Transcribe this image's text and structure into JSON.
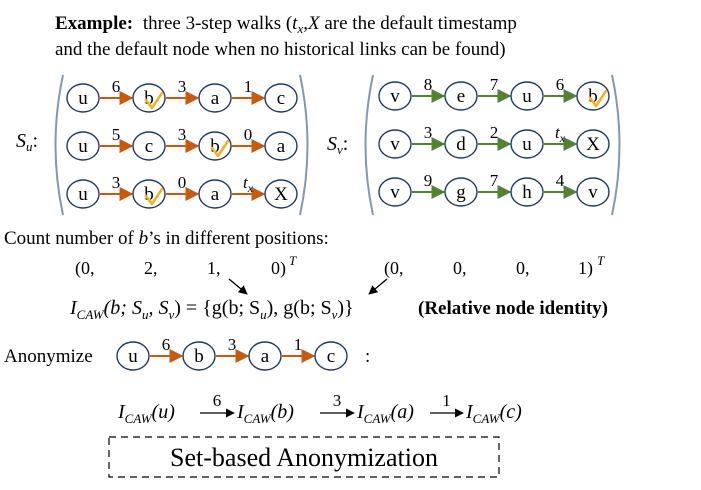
{
  "example": {
    "bold": "Example:",
    "line1_rest": "three 3-step walks (",
    "tx_t": "t",
    "tx_x": "x",
    "comma_X": ",",
    "X": "X",
    "line1_end": " are the default timestamp",
    "line2": "and the default node when no historical links can be found)"
  },
  "set_labels": {
    "su_S": "S",
    "su_sub": "u",
    "su_colon": ":",
    "sv_S": "S",
    "sv_sub": "v",
    "sv_colon": ":"
  },
  "su_walks": [
    {
      "nodes": [
        "u",
        "b",
        "a",
        "c"
      ],
      "edges": [
        "6",
        "3",
        "1"
      ],
      "checked": [
        1
      ]
    },
    {
      "nodes": [
        "u",
        "c",
        "b",
        "a"
      ],
      "edges": [
        "5",
        "3",
        "0"
      ],
      "checked": [
        2
      ]
    },
    {
      "nodes": [
        "u",
        "b",
        "a",
        "X"
      ],
      "edges": [
        "3",
        "0",
        "tx"
      ],
      "checked": [
        1
      ]
    }
  ],
  "sv_walks": [
    {
      "nodes": [
        "v",
        "e",
        "u",
        "b"
      ],
      "edges": [
        "8",
        "7",
        "6"
      ],
      "checked": [
        3
      ]
    },
    {
      "nodes": [
        "v",
        "d",
        "u",
        "X"
      ],
      "edges": [
        "3",
        "2",
        "tx"
      ],
      "checked": []
    },
    {
      "nodes": [
        "v",
        "g",
        "h",
        "v"
      ],
      "edges": [
        "9",
        "7",
        "4"
      ],
      "checked": []
    }
  ],
  "count_line": "Count number of b’s in different positions:",
  "vectors": {
    "left": [
      "(0,",
      "2,",
      "1,",
      "0)"
    ],
    "right": [
      "(0,",
      "0,",
      "0,",
      "1)"
    ],
    "T": "T"
  },
  "caw_formula": {
    "lhs": "I",
    "lhs_sub": "CAW",
    "args": "(b; S",
    "eq": ") = {g(b; S",
    "mid": "), g(b; S",
    "end": ")}",
    "bold_tail": "(Relative node identity)"
  },
  "anonymize": {
    "label": "Anonymize",
    "nodes": [
      "u",
      "b",
      "a",
      "c"
    ],
    "edges": [
      "6",
      "3",
      "1"
    ],
    "colon": ":"
  },
  "anon_result": {
    "terms": [
      "(u)",
      "(b)",
      "(a)",
      "(c)"
    ],
    "edges": [
      "6",
      "3",
      "1"
    ],
    "I": "I",
    "sub": "CAW"
  },
  "set_based_box": "Set-based Anonymization",
  "colors": {
    "orange_edge": "#c55a11",
    "green_edge": "#548235",
    "bracket": "#8497b0",
    "check": "#f0b323",
    "node_stroke": "#1f3864"
  }
}
